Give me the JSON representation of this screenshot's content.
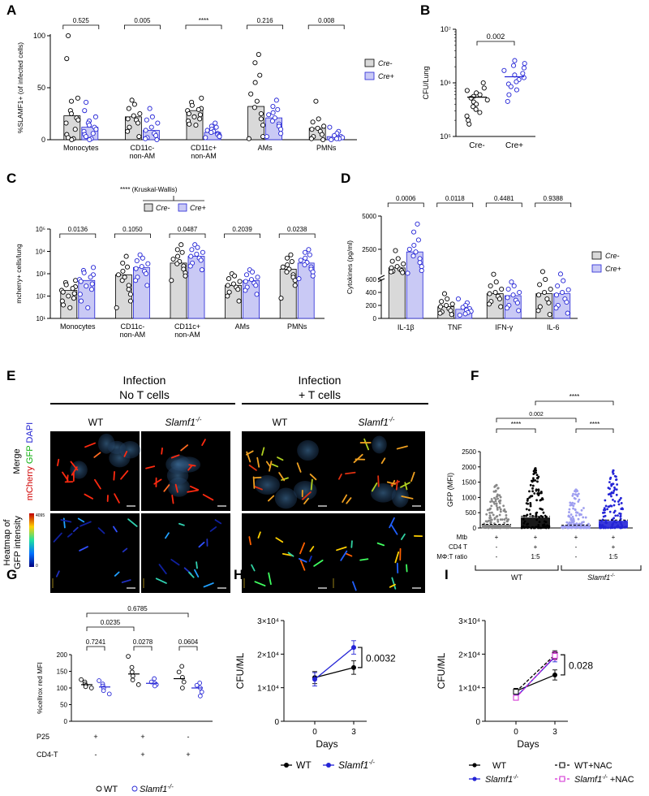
{
  "panel_labels": [
    "A",
    "B",
    "C",
    "D",
    "E",
    "F",
    "G",
    "H",
    "I"
  ],
  "legend": {
    "cre_minus": "Cre-",
    "cre_plus": "Cre+"
  },
  "categories5": [
    "Monocytes",
    "CD11c-\nnon-AM",
    "CD11c+\nnon-AM",
    "AMs",
    "PMNs"
  ],
  "colors": {
    "gray_bar": "#d9d9d9",
    "blue_bar": "#c9c9f5",
    "blue": "#2424d6",
    "pink": "#d22ad2"
  },
  "chart_data": [
    {
      "panel": "A",
      "type": "bar",
      "ylabel": "%SLAMF1+ (of infected cells)",
      "ylim": [
        0,
        100
      ],
      "yticks": [
        "0",
        "50",
        "100"
      ],
      "categories": [
        "Monocytes",
        "CD11c- non-AM",
        "CD11c+ non-AM",
        "AMs",
        "PMNs"
      ],
      "series": [
        {
          "name": "Cre-",
          "values": [
            23,
            22,
            28,
            32,
            11
          ],
          "points": [
            [
              100,
              78,
              40,
              37,
              28,
              25,
              21,
              19,
              16,
              10,
              5,
              2,
              1,
              0
            ],
            [
              38,
              34,
              30,
              25,
              23,
              20,
              19,
              16,
              12,
              8,
              3
            ],
            [
              40,
              36,
              33,
              30,
              29,
              28,
              25,
              24,
              22,
              20,
              18,
              15,
              14
            ],
            [
              82,
              74,
              62,
              55,
              44,
              37,
              31,
              25,
              20,
              14,
              3,
              1
            ],
            [
              37,
              20,
              17,
              13,
              11,
              10,
              8,
              5,
              3,
              1,
              0
            ]
          ]
        },
        {
          "name": "Cre+",
          "values": [
            12,
            9,
            7,
            21,
            3
          ],
          "points": [
            [
              36,
              28,
              22,
              18,
              16,
              14,
              12,
              10,
              8,
              6,
              5,
              3,
              1,
              0
            ],
            [
              30,
              22,
              19,
              16,
              12,
              9,
              6,
              4,
              2,
              1,
              0
            ],
            [
              16,
              13,
              12,
              10,
              9,
              8,
              7,
              6,
              5,
              4,
              3,
              2
            ],
            [
              38,
              32,
              29,
              26,
              24,
              21,
              18,
              15,
              13,
              10,
              6,
              3
            ],
            [
              12,
              8,
              6,
              4,
              3,
              2,
              2,
              1,
              1,
              0
            ]
          ]
        }
      ],
      "pvalues": [
        "0.525",
        "0.005",
        "****",
        "0.216",
        "0.008"
      ]
    },
    {
      "panel": "B",
      "type": "scatter",
      "ylabel": "CFU/Lung",
      "yscale": "log",
      "ylim": [
        100000,
        10000000
      ],
      "yticks": [
        "10⁵",
        "10⁶",
        "10⁷"
      ],
      "categories": [
        "Cre-",
        "Cre+"
      ],
      "series": [
        {
          "name": "Cre-",
          "mean": 540000,
          "points": [
            1000000,
            800000,
            720000,
            650000,
            600000,
            560000,
            520000,
            480000,
            440000,
            400000,
            360000,
            320000,
            280000,
            240000,
            200000,
            170000
          ]
        },
        {
          "name": "Cre+",
          "mean": 1300000,
          "points": [
            2600000,
            2300000,
            2100000,
            1900000,
            1700000,
            1500000,
            1400000,
            1250000,
            1150000,
            1050000,
            950000,
            850000,
            740000,
            600000,
            450000
          ]
        }
      ],
      "pvalue": "0.002"
    },
    {
      "panel": "C",
      "type": "bar",
      "ylabel": "mcherry+ cells/lung",
      "yscale": "log",
      "ylim": [
        10,
        100000
      ],
      "yticks": [
        "10¹",
        "10²",
        "10³",
        "10⁴",
        "10⁵"
      ],
      "categories": [
        "Monocytes",
        "CD11c- non-AM",
        "CD11c+ non-AM",
        "AMs",
        "PMNs"
      ],
      "series": [
        {
          "name": "Cre-",
          "values": [
            180,
            900,
            3000,
            300,
            1600
          ],
          "points": [
            [
              500,
              400,
              320,
              260,
              220,
              180,
              150,
              130,
              100,
              80,
              60,
              40,
              30
            ],
            [
              6000,
              3000,
              2000,
              1300,
              900,
              700,
              500,
              300,
              200,
              120,
              60,
              30
            ],
            [
              20000,
              12000,
              9000,
              6000,
              4500,
              3500,
              2800,
              2200,
              1600,
              1100,
              800,
              500
            ],
            [
              1000,
              800,
              600,
              450,
              350,
              300,
              250,
              200,
              150,
              100,
              60
            ],
            [
              7000,
              5000,
              3500,
              2500,
              2000,
              1600,
              1200,
              900,
              700,
              500,
              300,
              80
            ]
          ]
        },
        {
          "name": "Cre+",
          "values": [
            500,
            1900,
            6000,
            500,
            3000
          ],
          "points": [
            [
              1900,
              1400,
              1100,
              900,
              700,
              550,
              450,
              350,
              280,
              200,
              120,
              60,
              30
            ],
            [
              7000,
              5000,
              3800,
              2800,
              2100,
              1700,
              1300,
              1000,
              700,
              500,
              300
            ],
            [
              20000,
              15000,
              12000,
              9000,
              7500,
              6000,
              5000,
              4000,
              3000,
              2200,
              1500
            ],
            [
              1500,
              1200,
              900,
              700,
              550,
              450,
              380,
              300,
              250,
              180,
              120
            ],
            [
              12000,
              9000,
              7000,
              5000,
              4000,
              3200,
              2500,
              2000,
              1600,
              1200,
              800,
              600
            ]
          ]
        }
      ],
      "pvalues": [
        "0.0136",
        "0.1050",
        "0.0487",
        "0.2039",
        "0.0238"
      ],
      "kw_label": "**** (Kruskal-Wallis)"
    },
    {
      "panel": "D",
      "type": "bar",
      "ylabel": "Cytokines (pg/ml)",
      "yticks": [
        "0",
        "200",
        "400",
        "600",
        "2500",
        "5000"
      ],
      "categories": [
        "IL-1β",
        "TNF",
        "IFN-γ",
        "IL-6"
      ],
      "series": [
        {
          "name": "Cre-",
          "values": [
            1100,
            180,
            380,
            380
          ],
          "points": [
            [
              2400,
              1800,
              1600,
              1400,
              1200,
              1100,
              1000,
              900,
              850,
              800,
              750
            ],
            [
              380,
              300,
              260,
              220,
              200,
              180,
              150,
              120,
              100,
              80,
              60
            ],
            [
              620,
              560,
              500,
              450,
              400,
              380,
              340,
              300,
              260,
              220,
              180
            ],
            [
              820,
              600,
              520,
              450,
              400,
              360,
              300,
              240,
              180,
              120,
              60
            ]
          ]
        },
        {
          "name": "Cre+",
          "values": [
            2300,
            140,
            350,
            380
          ],
          "points": [
            [
              4400,
              3800,
              3200,
              2800,
              2500,
              2300,
              2000,
              1800,
              1500,
              1200,
              900,
              700
            ],
            [
              300,
              240,
              200,
              170,
              150,
              130,
              110,
              90,
              70,
              50
            ],
            [
              560,
              500,
              450,
              400,
              360,
              320,
              280,
              240,
              200,
              160,
              120
            ],
            [
              640,
              580,
              500,
              440,
              400,
              360,
              300,
              250,
              200,
              160,
              80
            ]
          ]
        }
      ],
      "pvalues": [
        "0.0006",
        "0.0118",
        "0.4481",
        "0.9388"
      ],
      "axis_break": true
    },
    {
      "panel": "F",
      "type": "scatter",
      "ylabel": "GFP (MFI)",
      "ylim": [
        0,
        2500
      ],
      "yticks": [
        "0",
        "500",
        "1000",
        "1500",
        "2000",
        "2500"
      ],
      "groups": [
        {
          "color": "#888888",
          "max": 1400,
          "mean": 120
        },
        {
          "color": "#000000",
          "max": 1950,
          "mean": 380
        },
        {
          "color": "#9e9ef0",
          "max": 1250,
          "mean": 90
        },
        {
          "color": "#2424d6",
          "max": 1880,
          "mean": 260
        }
      ],
      "condition_rows": [
        {
          "label": "Mtb",
          "values": [
            "+",
            "+",
            "+",
            "+"
          ]
        },
        {
          "label": "CD4 T",
          "values": [
            "-",
            "+",
            "-",
            "+"
          ]
        },
        {
          "label": "MΦ:T ratio",
          "values": [
            "-",
            "1:5",
            "-",
            "1:5"
          ]
        }
      ],
      "group_labels": [
        "WT",
        "Slamf1-/-"
      ],
      "pvalues": [
        "****",
        "****",
        "0.002",
        "****"
      ]
    },
    {
      "panel": "G",
      "type": "scatter",
      "ylabel": "%cellrox red MFI",
      "ylim": [
        0,
        200
      ],
      "yticks": [
        "0",
        "50",
        "100",
        "150",
        "200"
      ],
      "series": [
        {
          "name": "WT",
          "means": [
            110,
            142,
            128
          ],
          "points": [
            [
              125,
              118,
              112,
              108,
              104,
              100
            ],
            [
              195,
              162,
              148,
              136,
              124,
              110
            ],
            [
              165,
              148,
              132,
              118,
              100
            ]
          ]
        },
        {
          "name": "Slamf1-/-",
          "means": [
            103,
            114,
            100
          ],
          "points": [
            [
              122,
              112,
              106,
              100,
              92,
              82
            ],
            [
              128,
              118,
              114,
              110,
              106
            ],
            [
              115,
              108,
              100,
              88,
              76
            ]
          ]
        }
      ],
      "condition_rows": [
        {
          "label": "P25",
          "values": [
            "+",
            "+",
            "-"
          ]
        },
        {
          "label": "CD4-T",
          "values": [
            "-",
            "+",
            "+"
          ]
        }
      ],
      "pvalues": [
        "0.7241",
        "0.0278",
        "0.0604",
        "0.0235",
        "0.6785"
      ]
    },
    {
      "panel": "H",
      "type": "line",
      "ylabel": "CFU/ML",
      "xlabel": "Days",
      "x": [
        0,
        3
      ],
      "xticks": [
        "0",
        "3"
      ],
      "ylim": [
        0,
        30000
      ],
      "yticks": [
        "0",
        "1×10⁴",
        "2×10⁴",
        "3×10⁴"
      ],
      "series": [
        {
          "name": "WT",
          "values": [
            13000,
            16000
          ],
          "err": [
            1800,
            2000
          ]
        },
        {
          "name": "Slamf1-/-",
          "values": [
            12500,
            22000
          ],
          "err": [
            2000,
            2000
          ]
        }
      ],
      "pvalue": "0.0032"
    },
    {
      "panel": "I",
      "type": "line",
      "ylabel": "CFU/ML",
      "xlabel": "Days",
      "x": [
        0,
        3
      ],
      "xticks": [
        "0",
        "3"
      ],
      "ylim": [
        0,
        30000
      ],
      "yticks": [
        "0",
        "1×10⁴",
        "2×10⁴",
        "3×10⁴"
      ],
      "series": [
        {
          "name": "WT",
          "values": [
            9000,
            13800
          ],
          "err": [
            800,
            1500
          ]
        },
        {
          "name": "Slamf1-/-",
          "values": [
            7200,
            19200
          ],
          "err": [
            600,
            1500
          ]
        },
        {
          "name": "WT+NAC",
          "values": [
            8800,
            19800
          ],
          "err": [
            600,
            1200
          ]
        },
        {
          "name": "Slamf1-/- +NAC",
          "values": [
            7000,
            19500
          ],
          "err": [
            600,
            1200
          ]
        }
      ],
      "pvalue": "0.028"
    }
  ],
  "panel_e": {
    "group1_title": [
      "Infection",
      "No T cells"
    ],
    "group2_title": [
      "Infection",
      "+ T cells"
    ],
    "col_labels": [
      "WT",
      "Slamf1-/-",
      "WT",
      "Slamf1-/-"
    ],
    "row1_label": "Merge",
    "row1_channels": [
      "mCherry",
      "GFP",
      "DAPI"
    ],
    "row2_label": [
      "Heatmap of",
      "GFP intensity"
    ],
    "colorbar_max": "4095",
    "colorbar_min": "0"
  }
}
